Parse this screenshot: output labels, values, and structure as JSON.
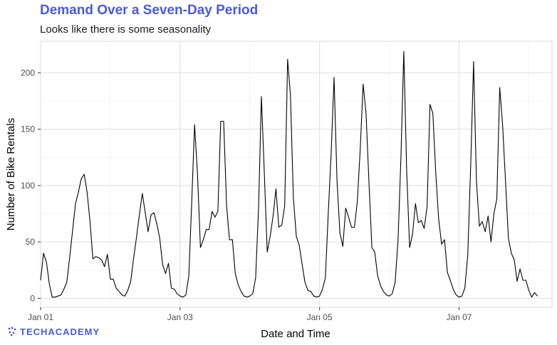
{
  "chart_data": {
    "type": "line",
    "title": "Demand Over a Seven-Day Period",
    "subtitle": "Looks like there is some seasonality",
    "xlabel": "Date and Time",
    "ylabel": "Number of Bike Rentals",
    "x_start": "Jan 01 00:00",
    "x_step": "1 hour",
    "x_ticks": [
      {
        "label": "Jan 01",
        "x": 0
      },
      {
        "label": "Jan 03",
        "x": 48
      },
      {
        "label": "Jan 05",
        "x": 96
      },
      {
        "label": "Jan 07",
        "x": 144
      }
    ],
    "y_ticks": [
      0,
      50,
      100,
      150,
      200
    ],
    "xlim": [
      0,
      176
    ],
    "ylim": [
      -8,
      228
    ],
    "grid": true,
    "line_color": "#000000",
    "values": [
      16,
      40,
      32,
      13,
      1,
      1,
      2,
      3,
      8,
      14,
      36,
      60,
      84,
      94,
      106,
      110,
      94,
      68,
      35,
      37,
      36,
      34,
      28,
      39,
      17,
      17,
      9,
      6,
      3,
      2,
      7,
      15,
      35,
      54,
      74,
      93,
      76,
      59,
      74,
      76,
      66,
      53,
      30,
      22,
      31,
      9,
      8,
      4,
      2,
      1,
      3,
      20,
      84,
      154,
      110,
      45,
      52,
      61,
      61,
      77,
      72,
      77,
      157,
      157,
      82,
      52,
      52,
      22,
      12,
      6,
      2,
      1,
      2,
      4,
      18,
      80,
      179,
      111,
      41,
      55,
      73,
      97,
      63,
      65,
      82,
      212,
      180,
      89,
      55,
      47,
      30,
      14,
      7,
      6,
      2,
      1,
      2,
      8,
      18,
      76,
      130,
      196,
      105,
      58,
      46,
      80,
      72,
      63,
      63,
      86,
      133,
      190,
      164,
      103,
      45,
      41,
      20,
      11,
      6,
      3,
      2,
      4,
      14,
      51,
      125,
      219,
      112,
      45,
      57,
      84,
      67,
      69,
      62,
      81,
      172,
      164,
      111,
      70,
      48,
      52,
      23,
      16,
      8,
      3,
      1,
      2,
      9,
      38,
      117,
      210,
      104,
      64,
      68,
      59,
      73,
      50,
      75,
      88,
      187,
      154,
      104,
      53,
      40,
      34,
      15,
      26,
      16,
      16,
      7,
      1,
      5,
      2
    ]
  },
  "brand": {
    "logo_text": "TECHACADEMY",
    "accent_color": "#4a5bd6"
  }
}
